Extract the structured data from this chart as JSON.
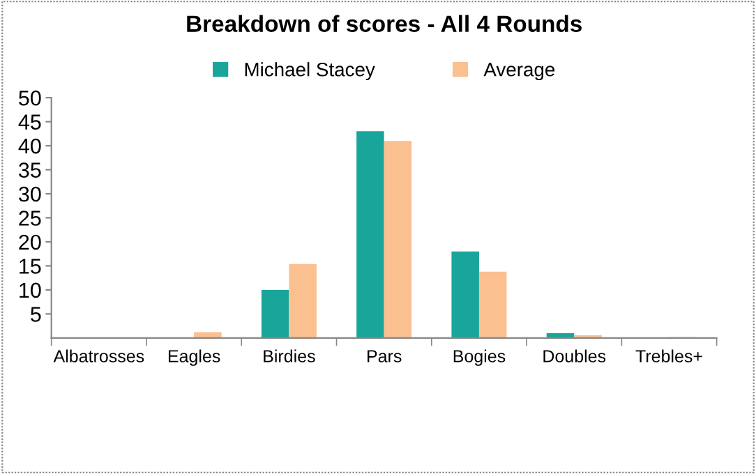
{
  "chart_data": {
    "type": "bar",
    "title": "Breakdown of scores - All 4 Rounds",
    "categories": [
      "Albatrosses",
      "Eagles",
      "Birdies",
      "Pars",
      "Bogies",
      "Doubles",
      "Trebles+"
    ],
    "series": [
      {
        "name": "Michael Stacey",
        "color": "#1aa59a",
        "values": [
          0,
          0,
          10,
          43,
          18,
          1,
          0
        ]
      },
      {
        "name": "Average",
        "color": "#fac090",
        "values": [
          0,
          1.2,
          15.4,
          41,
          13.8,
          0.6,
          0.2
        ]
      }
    ],
    "ylim": [
      0,
      50
    ],
    "yticks": [
      5,
      10,
      15,
      20,
      25,
      30,
      35,
      40,
      45,
      50
    ],
    "grid": false,
    "legend": "top"
  }
}
